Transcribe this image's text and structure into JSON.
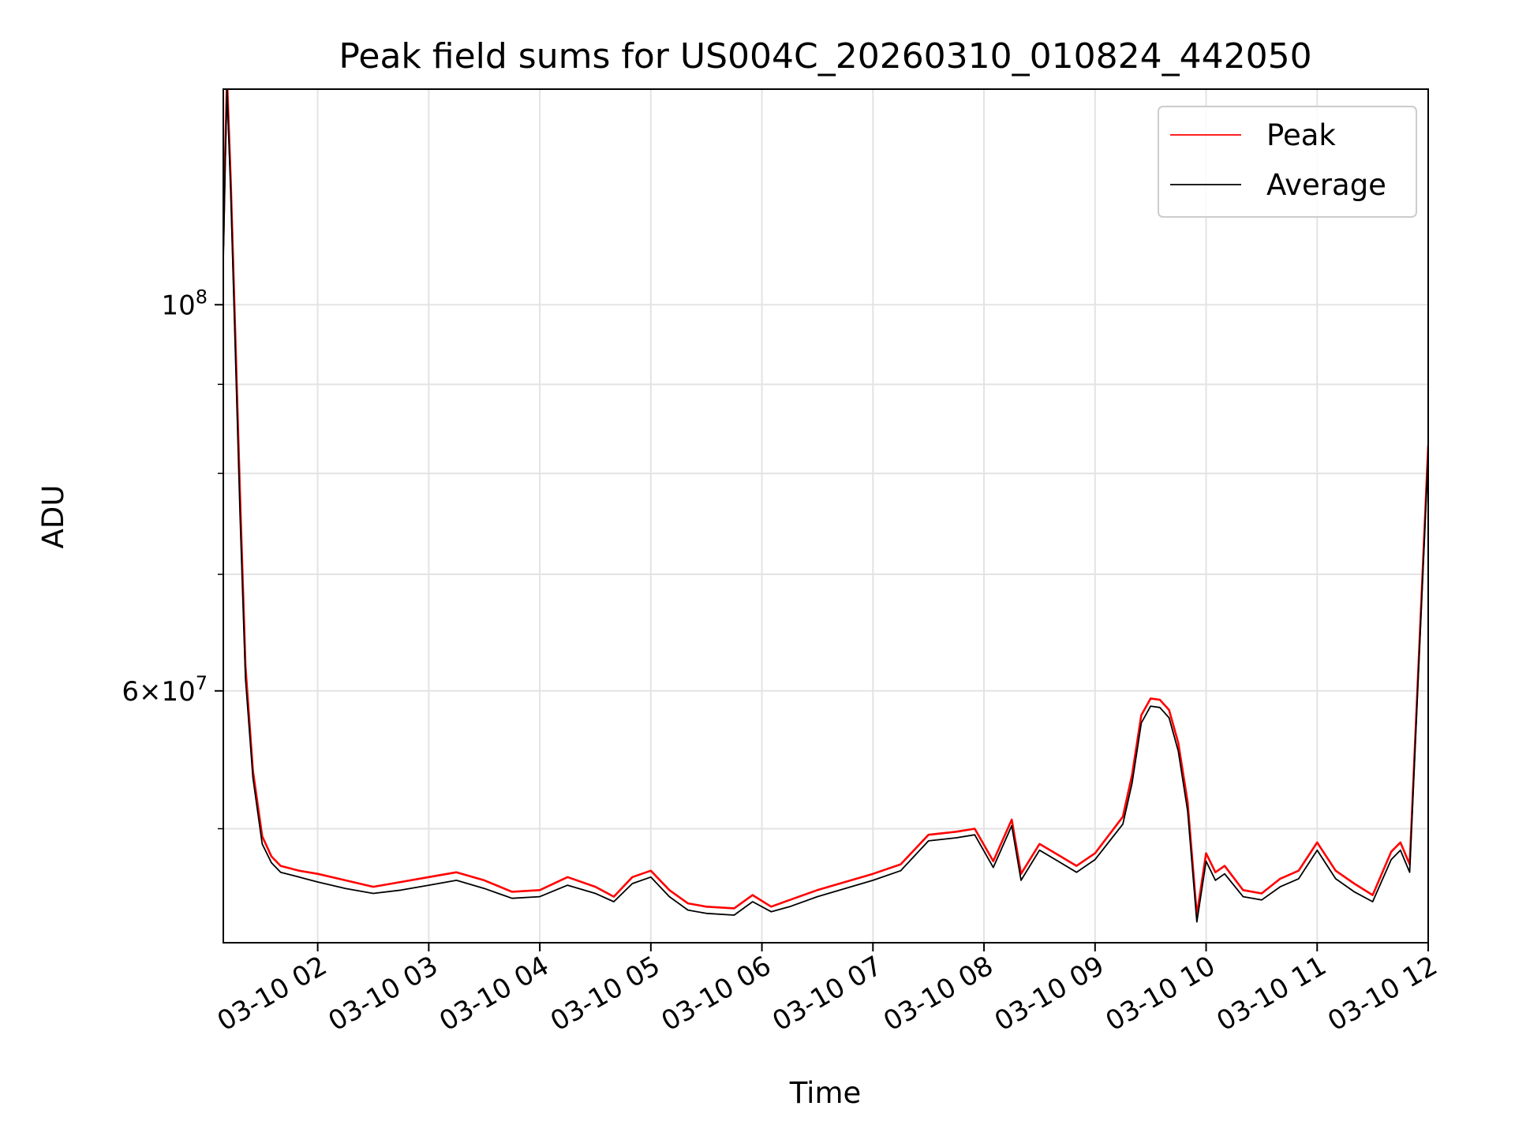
{
  "chart_data": {
    "type": "line",
    "title": "Peak field sums for US004C_20260310_010824_442050",
    "xlabel": "Time",
    "ylabel": "ADU",
    "y_scale": "log",
    "grid": true,
    "legend_position": "upper right",
    "x_range": [
      "2026-03-10 01:09",
      "2026-03-10 12:00"
    ],
    "ylim": [
      43000000,
      133000000
    ],
    "x_ticks": [
      "03-10 02",
      "03-10 03",
      "03-10 04",
      "03-10 05",
      "03-10 06",
      "03-10 07",
      "03-10 08",
      "03-10 09",
      "03-10 10",
      "03-10 11",
      "03-10 12"
    ],
    "y_ticks": [
      {
        "value": 100000000,
        "label": "10^8"
      },
      {
        "value": 60000000,
        "label": "6×10^7"
      }
    ],
    "y_minor_ticks": [
      50000000,
      70000000,
      80000000,
      90000000
    ],
    "series": [
      {
        "name": "Peak",
        "color": "#ff0000",
        "x": [
          "01:09",
          "01:10",
          "01:11",
          "01:13",
          "01:15",
          "01:18",
          "01:21",
          "01:25",
          "01:30",
          "01:35",
          "01:40",
          "01:50",
          "02:00",
          "02:15",
          "02:30",
          "02:45",
          "03:00",
          "03:15",
          "03:30",
          "03:45",
          "04:00",
          "04:15",
          "04:30",
          "04:40",
          "04:50",
          "05:00",
          "05:10",
          "05:20",
          "05:30",
          "05:45",
          "05:55",
          "06:05",
          "06:15",
          "06:30",
          "06:45",
          "07:00",
          "07:15",
          "07:30",
          "07:45",
          "07:55",
          "08:05",
          "08:15",
          "08:20",
          "08:30",
          "08:40",
          "08:50",
          "09:00",
          "09:15",
          "09:20",
          "09:25",
          "09:30",
          "09:35",
          "09:40",
          "09:45",
          "09:50",
          "09:55",
          "10:00",
          "10:05",
          "10:10",
          "10:20",
          "10:30",
          "10:40",
          "10:50",
          "11:00",
          "11:10",
          "11:20",
          "11:30",
          "11:40",
          "11:45",
          "11:50",
          "11:55",
          "12:00"
        ],
        "y": [
          108000000,
          122000000,
          135000000,
          118000000,
          100000000,
          78000000,
          62000000,
          54000000,
          49500000,
          48200000,
          47600000,
          47300000,
          47100000,
          46700000,
          46300000,
          46600000,
          46900000,
          47200000,
          46700000,
          46000000,
          46100000,
          46900000,
          46300000,
          45700000,
          46900000,
          47300000,
          46100000,
          45300000,
          45100000,
          45000000,
          45800000,
          45100000,
          45500000,
          46100000,
          46600000,
          47100000,
          47700000,
          49600000,
          49800000,
          50000000,
          47900000,
          50600000,
          47100000,
          49000000,
          48300000,
          47600000,
          48400000,
          50800000,
          53700000,
          58100000,
          59400000,
          59300000,
          58500000,
          56000000,
          51800000,
          44600000,
          48400000,
          47200000,
          47600000,
          46100000,
          45900000,
          46800000,
          47300000,
          49100000,
          47300000,
          46500000,
          45800000,
          48500000,
          49100000,
          47700000,
          63000000,
          83000000
        ]
      },
      {
        "name": "Average",
        "color": "#000000",
        "x": [
          "01:09",
          "01:10",
          "01:11",
          "01:13",
          "01:15",
          "01:18",
          "01:21",
          "01:25",
          "01:30",
          "01:35",
          "01:40",
          "01:50",
          "02:00",
          "02:15",
          "02:30",
          "02:45",
          "03:00",
          "03:15",
          "03:30",
          "03:45",
          "04:00",
          "04:15",
          "04:30",
          "04:40",
          "04:50",
          "05:00",
          "05:10",
          "05:20",
          "05:30",
          "05:45",
          "05:55",
          "06:05",
          "06:15",
          "06:30",
          "06:45",
          "07:00",
          "07:15",
          "07:30",
          "07:45",
          "07:55",
          "08:05",
          "08:15",
          "08:20",
          "08:30",
          "08:40",
          "08:50",
          "09:00",
          "09:15",
          "09:20",
          "09:25",
          "09:30",
          "09:35",
          "09:40",
          "09:45",
          "09:50",
          "09:55",
          "10:00",
          "10:05",
          "10:10",
          "10:20",
          "10:30",
          "10:40",
          "10:50",
          "11:00",
          "11:10",
          "11:20",
          "11:30",
          "11:40",
          "11:45",
          "11:50",
          "11:55",
          "12:00"
        ],
        "y": [
          106000000,
          120000000,
          133000000,
          116000000,
          98000000,
          76000000,
          61000000,
          53500000,
          49000000,
          47800000,
          47200000,
          46900000,
          46600000,
          46200000,
          45900000,
          46100000,
          46400000,
          46700000,
          46200000,
          45600000,
          45700000,
          46400000,
          45900000,
          45400000,
          46500000,
          46900000,
          45700000,
          44900000,
          44700000,
          44600000,
          45400000,
          44800000,
          45100000,
          45700000,
          46200000,
          46700000,
          47300000,
          49200000,
          49400000,
          49600000,
          47500000,
          50200000,
          46700000,
          48600000,
          47900000,
          47200000,
          48000000,
          50300000,
          53100000,
          57500000,
          58800000,
          58700000,
          57900000,
          55400000,
          51200000,
          44200000,
          47900000,
          46700000,
          47100000,
          45700000,
          45500000,
          46300000,
          46800000,
          48600000,
          46800000,
          46000000,
          45400000,
          48000000,
          48600000,
          47200000,
          62400000,
          82000000
        ]
      }
    ]
  }
}
